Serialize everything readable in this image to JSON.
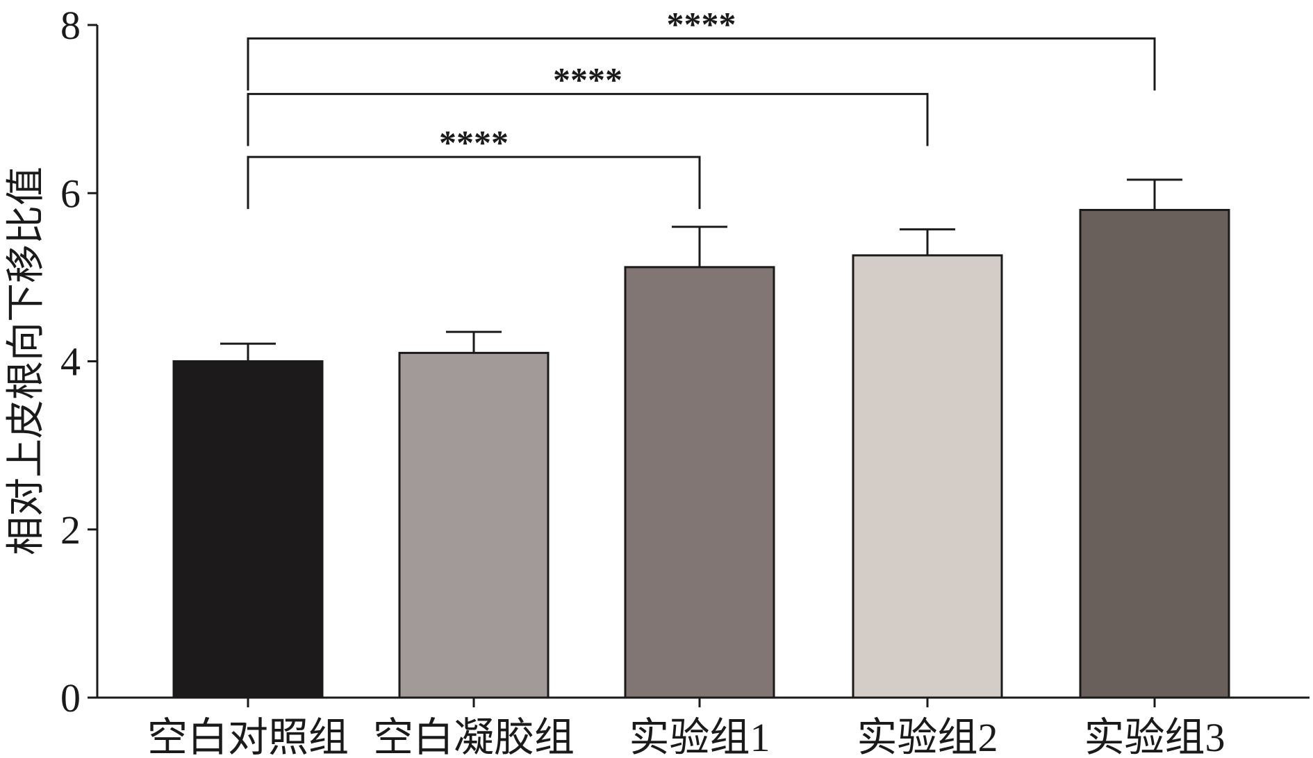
{
  "chart_data": {
    "type": "bar",
    "title": "",
    "xlabel": "",
    "ylabel": "相对上皮根向下移比值",
    "ylim": [
      0,
      8
    ],
    "yticks": [
      0,
      2,
      4,
      6,
      8
    ],
    "grid": false,
    "legend": "none",
    "categories": [
      "空白对照组",
      "空白凝胶组",
      "实验组1",
      "实验组2",
      "实验组3"
    ],
    "values": [
      4.0,
      4.1,
      5.12,
      5.26,
      5.8
    ],
    "errors": [
      0.21,
      0.25,
      0.48,
      0.31,
      0.36
    ],
    "colors": [
      "#1c1a1a",
      "#a19a98",
      "#827674",
      "#d4ccc7",
      "#6a605b"
    ],
    "significance": [
      {
        "from": 0,
        "to": 2,
        "label": "****",
        "level": 6.43
      },
      {
        "from": 0,
        "to": 3,
        "label": "****",
        "level": 7.18
      },
      {
        "from": 0,
        "to": 4,
        "label": "****",
        "level": 7.84
      }
    ]
  }
}
